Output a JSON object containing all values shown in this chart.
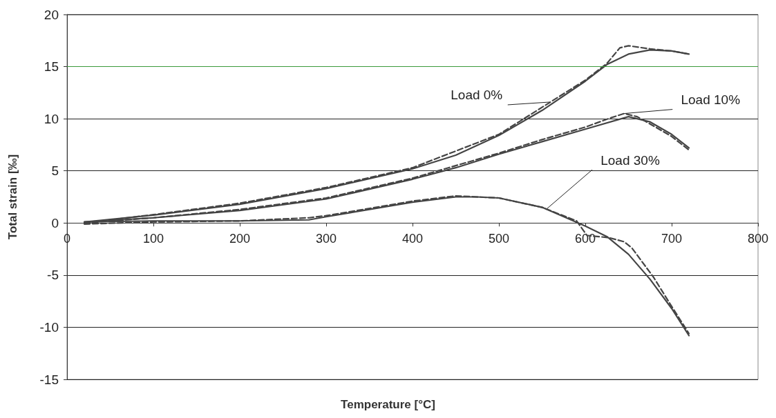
{
  "chart_data": {
    "type": "line",
    "xlabel": "Temperature [°C]",
    "ylabel": "Total strain [‰]",
    "xlim": [
      0,
      800
    ],
    "xticks": [
      0,
      100,
      200,
      300,
      400,
      500,
      600,
      700,
      800
    ],
    "ylim": [
      -15,
      20
    ],
    "yticks": [
      -15,
      -10,
      -5,
      0,
      5,
      10,
      15,
      20
    ],
    "grid": "y",
    "marker": "none",
    "ref_lines": [
      {
        "axis": "y",
        "value": 15,
        "color": "#3a9a3a"
      }
    ],
    "annotations": [
      {
        "text": "Load 0%",
        "x": 559,
        "y": 11.6
      },
      {
        "text": "Load 10%",
        "x": 645,
        "y": 10.5
      },
      {
        "text": "Load 30%",
        "x": 556,
        "y": 1.4
      }
    ],
    "series": [
      {
        "color": "#444444",
        "line_style": "solid",
        "x": [
          20,
          100,
          200,
          300,
          400,
          450,
          500,
          550,
          600,
          625,
          650,
          675,
          700,
          720
        ],
        "values": [
          0.1,
          0.75,
          1.8,
          3.3,
          5.2,
          6.5,
          8.4,
          10.8,
          13.6,
          15.2,
          16.2,
          16.6,
          16.5,
          16.2
        ]
      },
      {
        "color": "#444444",
        "line_style": "dashed",
        "x": [
          20,
          100,
          200,
          300,
          400,
          500,
          600,
          625,
          640,
          650,
          675,
          700,
          720
        ],
        "values": [
          0.0,
          0.8,
          1.9,
          3.4,
          5.3,
          8.5,
          13.7,
          15.3,
          16.8,
          17.0,
          16.7,
          16.5,
          16.2
        ]
      },
      {
        "color": "#444444",
        "line_style": "solid",
        "x": [
          20,
          100,
          200,
          300,
          400,
          450,
          500,
          550,
          600,
          650,
          675,
          700,
          720
        ],
        "values": [
          0.1,
          0.5,
          1.2,
          2.3,
          4.2,
          5.3,
          6.6,
          7.8,
          9.0,
          10.2,
          9.7,
          8.5,
          7.2
        ]
      },
      {
        "color": "#444444",
        "line_style": "dashed",
        "x": [
          20,
          100,
          200,
          300,
          400,
          500,
          550,
          600,
          630,
          645,
          660,
          675,
          700,
          720
        ],
        "values": [
          0.0,
          0.5,
          1.3,
          2.4,
          4.3,
          6.7,
          8.0,
          9.2,
          10.1,
          10.5,
          10.2,
          9.5,
          8.3,
          7.0
        ]
      },
      {
        "color": "#444444",
        "line_style": "solid",
        "x": [
          20,
          100,
          200,
          280,
          300,
          400,
          450,
          475,
          500,
          550,
          600,
          625,
          650,
          675,
          700,
          720
        ],
        "values": [
          0.1,
          0.2,
          0.2,
          0.3,
          0.6,
          2.0,
          2.5,
          2.5,
          2.4,
          1.5,
          -0.3,
          -1.3,
          -3.0,
          -5.4,
          -8.2,
          -10.8
        ]
      },
      {
        "color": "#444444",
        "line_style": "dashed",
        "x": [
          20,
          100,
          200,
          280,
          300,
          400,
          450,
          500,
          550,
          590,
          602,
          627,
          645,
          654,
          679,
          700,
          720
        ],
        "values": [
          -0.1,
          0.1,
          0.2,
          0.5,
          0.7,
          2.1,
          2.6,
          2.4,
          1.5,
          0.2,
          -1.2,
          -1.4,
          -1.8,
          -2.4,
          -5.2,
          -8.0,
          -10.6
        ]
      }
    ]
  }
}
